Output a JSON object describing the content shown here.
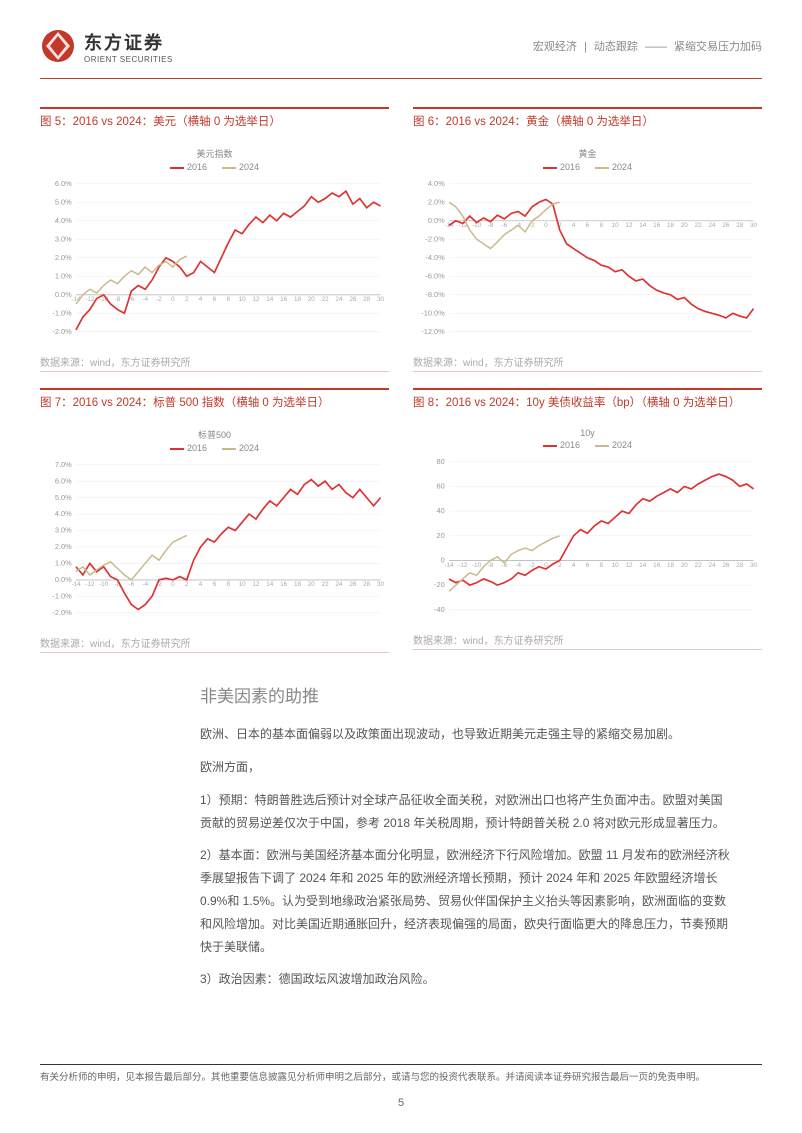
{
  "header": {
    "logo_cn": "东方证券",
    "logo_en": "ORIENT SECURITIES",
    "right_a": "宏观经济",
    "right_b": "动态跟踪",
    "right_c": "紧缩交易压力加码"
  },
  "charts": {
    "c5": {
      "title": "图 5：2016 vs 2024：美元（横轴 0 为选举日）",
      "subtitle": "美元指数",
      "leg1": "2016",
      "leg2": "2024",
      "source": "数据来源：wind，东方证券研究所",
      "yticks": [
        "6.0%",
        "5.0%",
        "4.0%",
        "3.0%",
        "2.0%",
        "1.0%",
        "0.0%",
        "-1.0%",
        "-2.0%"
      ],
      "ymin": -2.0,
      "ymax": 6.0,
      "s2016": [
        -1.9,
        -1.2,
        -0.8,
        -0.2,
        0.0,
        -0.5,
        -0.8,
        -1.0,
        0.2,
        0.5,
        0.3,
        0.8,
        1.5,
        2.0,
        1.8,
        1.5,
        1.0,
        1.2,
        1.8,
        1.5,
        1.2,
        2.0,
        2.8,
        3.5,
        3.3,
        3.8,
        4.2,
        3.9,
        4.3,
        4.0,
        4.4,
        4.2,
        4.5,
        4.8,
        5.3,
        5.0,
        5.2,
        5.5,
        5.3,
        5.6,
        4.9,
        5.2,
        4.7,
        5.0,
        4.8
      ],
      "s2024": [
        -0.5,
        0.0,
        0.3,
        0.1,
        0.5,
        0.8,
        0.6,
        1.0,
        1.3,
        1.1,
        1.5,
        1.2,
        1.6,
        1.8,
        1.5,
        1.9,
        2.1
      ],
      "colors": {
        "s2016": "#d33",
        "s2024": "#c9b98a",
        "bg": "#ffffff"
      }
    },
    "c6": {
      "title": "图 6：2016 vs 2024：黄金（横轴 0 为选举日）",
      "subtitle": "黄金",
      "leg1": "2016",
      "leg2": "2024",
      "source": "数据来源：wind，东方证券研究所",
      "yticks": [
        "4.0%",
        "2.0%",
        "0.0%",
        "-2.0%",
        "-4.0%",
        "-6.0%",
        "-8.0%",
        "-10.0%",
        "-12.0%"
      ],
      "ymin": -12.0,
      "ymax": 4.0,
      "s2016": [
        -0.5,
        0.0,
        -0.3,
        0.5,
        -0.2,
        0.3,
        -0.1,
        0.6,
        0.2,
        0.8,
        1.0,
        0.5,
        1.5,
        2.0,
        2.3,
        1.8,
        -1.0,
        -2.5,
        -3.0,
        -3.5,
        -4.0,
        -4.3,
        -4.8,
        -5.0,
        -5.5,
        -5.3,
        -6.0,
        -6.5,
        -6.3,
        -7.0,
        -7.5,
        -7.8,
        -8.0,
        -8.5,
        -8.3,
        -9.0,
        -9.5,
        -9.8,
        -10.0,
        -10.2,
        -10.5,
        -10.0,
        -10.3,
        -10.5,
        -9.5
      ],
      "s2024": [
        2.0,
        1.5,
        0.5,
        -1.0,
        -2.0,
        -2.5,
        -3.0,
        -2.3,
        -1.5,
        -1.0,
        -0.5,
        -1.2,
        0.0,
        0.5,
        1.2,
        1.8,
        2.0
      ],
      "colors": {
        "s2016": "#d33",
        "s2024": "#c9b98a",
        "bg": "#ffffff"
      }
    },
    "c7": {
      "title": "图 7：2016 vs 2024：标普 500 指数（横轴 0 为选举日）",
      "subtitle": "标普500",
      "leg1": "2016",
      "leg2": "2024",
      "source": "数据来源：wind，东方证券研究所",
      "yticks": [
        "7.0%",
        "6.0%",
        "5.0%",
        "4.0%",
        "3.0%",
        "2.0%",
        "1.0%",
        "0.0%",
        "-1.0%",
        "-2.0%"
      ],
      "ymin": -2.0,
      "ymax": 7.0,
      "s2016": [
        0.8,
        0.3,
        1.0,
        0.5,
        0.8,
        0.2,
        0.0,
        -0.8,
        -1.5,
        -1.8,
        -1.5,
        -1.0,
        0.0,
        0.1,
        0.0,
        0.2,
        0.0,
        1.2,
        2.0,
        2.5,
        2.3,
        2.8,
        3.2,
        3.0,
        3.5,
        4.0,
        3.7,
        4.3,
        4.8,
        4.5,
        5.0,
        5.5,
        5.2,
        5.8,
        6.1,
        5.7,
        6.0,
        5.5,
        5.8,
        5.3,
        5.0,
        5.5,
        5.0,
        4.5,
        5.0
      ],
      "s2024": [
        0.5,
        0.8,
        0.3,
        0.6,
        0.9,
        1.1,
        0.7,
        0.3,
        0.0,
        0.5,
        1.0,
        1.5,
        1.2,
        1.8,
        2.3,
        2.5,
        2.7
      ],
      "colors": {
        "s2016": "#d33",
        "s2024": "#c9b98a",
        "bg": "#ffffff"
      }
    },
    "c8": {
      "title": "图 8：2016 vs 2024：10y 美债收益率（bp）（横轴 0 为选举日）",
      "subtitle": "10y",
      "leg1": "2016",
      "leg2": "2024",
      "source": "数据来源：wind，东方证券研究所",
      "yticks": [
        "80",
        "60",
        "40",
        "20",
        "0",
        "-20",
        "-40"
      ],
      "ymin": -40,
      "ymax": 80,
      "s2016": [
        -15,
        -18,
        -16,
        -20,
        -18,
        -15,
        -17,
        -20,
        -18,
        -15,
        -10,
        -12,
        -8,
        -5,
        -7,
        -3,
        0,
        10,
        20,
        25,
        22,
        28,
        32,
        30,
        35,
        40,
        38,
        45,
        50,
        48,
        52,
        55,
        58,
        55,
        60,
        58,
        62,
        65,
        68,
        70,
        68,
        65,
        60,
        62,
        58
      ],
      "s2024": [
        -25,
        -20,
        -15,
        -10,
        -12,
        -5,
        0,
        3,
        -2,
        5,
        8,
        10,
        8,
        12,
        15,
        18,
        20
      ],
      "colors": {
        "s2016": "#d33",
        "s2024": "#c9b98a",
        "bg": "#ffffff"
      }
    }
  },
  "section": {
    "heading": "非美因素的助推",
    "p1": "欧洲、日本的基本面偏弱以及政策面出现波动，也导致近期美元走强主导的紧缩交易加剧。",
    "p2": "欧洲方面，",
    "p3": "1）预期：特朗普胜选后预计对全球产品征收全面关税，对欧洲出口也将产生负面冲击。欧盟对美国贡献的贸易逆差仅次于中国，参考 2018 年关税周期，预计特朗普关税 2.0 将对欧元形成显著压力。",
    "p4": "2）基本面：欧洲与美国经济基本面分化明显，欧洲经济下行风险增加。欧盟 11 月发布的欧洲经济秋季展望报告下调了 2024 年和 2025 年的欧洲经济增长预期，预计 2024 年和 2025 年欧盟经济增长 0.9%和 1.5%。认为受到地缘政治紧张局势、贸易伙伴国保护主义抬头等因素影响，欧洲面临的变数和风险增加。对比美国近期通胀回升，经济表现偏强的局面，欧央行面临更大的降息压力，节奏预期快于美联储。",
    "p5": "3）政治因素：德国政坛风波增加政治风险。"
  },
  "footer": {
    "disclaimer": "有关分析师的申明，见本报告最后部分。其他重要信息披露见分析师申明之后部分，或请与您的投资代表联系。并请阅读本证券研究报告最后一页的免责申明。",
    "page": "5"
  }
}
